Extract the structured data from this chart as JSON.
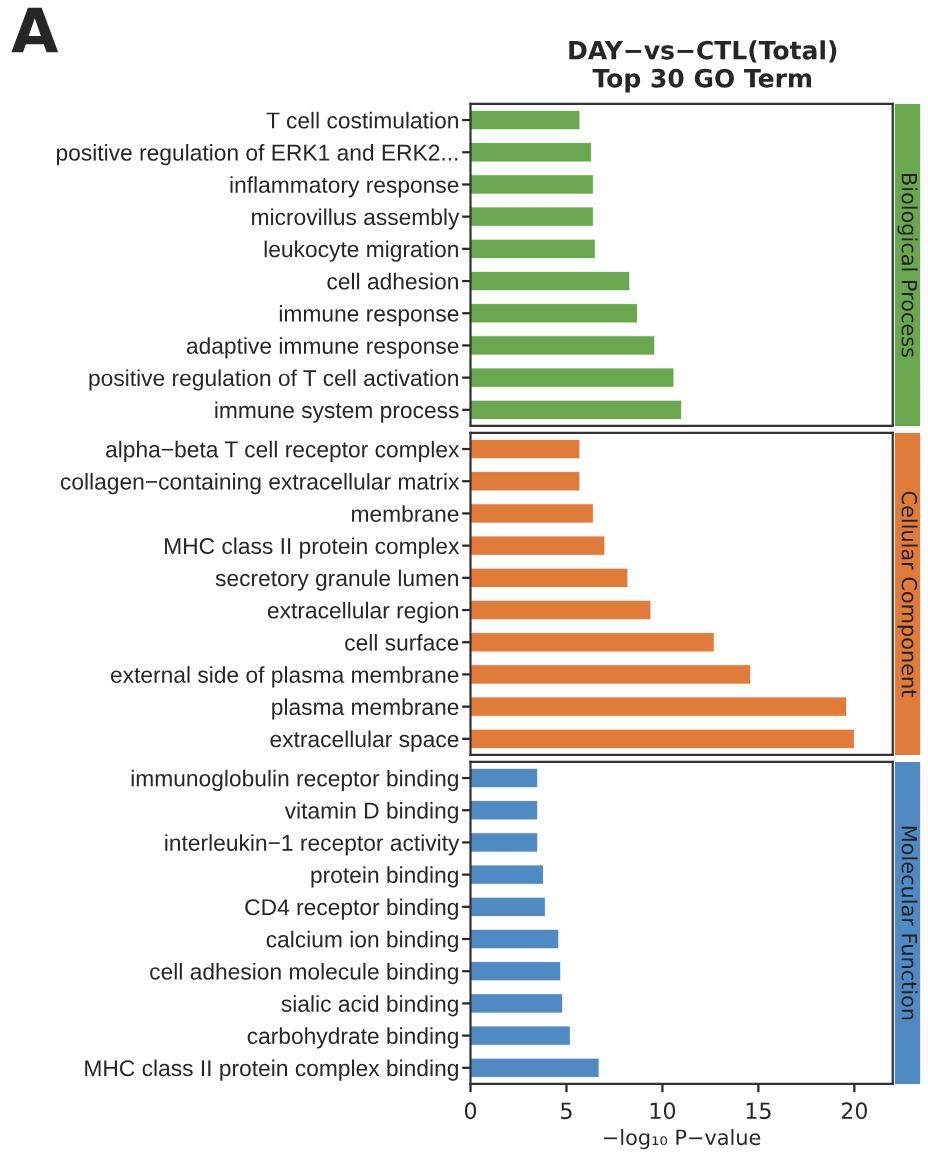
{
  "chart_data": [
    {
      "type": "bar",
      "orientation": "horizontal",
      "title": "DAY−vs−CTL(Total)\nTop 30 GO Term",
      "annotations": [
        "A",
        "Biological Process"
      ],
      "color": "#6aa84f",
      "tick_labels": "y",
      "xlim": [
        0,
        22
      ],
      "categories": [
        "T cell costimulation",
        "positive regulation of ERK1 and ERK2...",
        "inflammatory response",
        "microvillus assembly",
        "leukocyte migration",
        "cell adhesion",
        "immune response",
        "adaptive immune response",
        "positive regulation of T cell activation",
        "immune system process"
      ],
      "values": [
        5.7,
        6.3,
        6.4,
        6.4,
        6.5,
        8.3,
        8.7,
        9.6,
        10.6,
        11.0
      ]
    },
    {
      "type": "bar",
      "orientation": "horizontal",
      "annotations": [
        "Cellular Component"
      ],
      "color": "#e07b39",
      "tick_labels": "y",
      "xlim": [
        0,
        22
      ],
      "categories": [
        "alpha−beta T cell receptor complex",
        "collagen−containing extracellular matrix",
        "membrane",
        "MHC class II protein complex",
        "secretory granule lumen",
        "extracellular region",
        "cell surface",
        "external side of plasma membrane",
        "plasma membrane",
        "extracellular space"
      ],
      "values": [
        5.7,
        5.7,
        6.4,
        7.0,
        8.2,
        9.4,
        12.7,
        14.6,
        19.6,
        20.0
      ]
    },
    {
      "type": "bar",
      "orientation": "horizontal",
      "annotations": [
        "Molecular Function"
      ],
      "color": "#4f8bc2",
      "xlabel": "−log₁₀ P−value",
      "xlim": [
        0,
        22
      ],
      "xticks": [
        0,
        5,
        10,
        15,
        20
      ],
      "categories": [
        "immunoglobulin receptor binding",
        "vitamin D binding",
        "interleukin−1 receptor activity",
        "protein binding",
        "CD4 receptor binding",
        "calcium ion binding",
        "cell adhesion molecule binding",
        "sialic acid binding",
        "carbohydrate binding",
        "MHC class II protein complex binding"
      ],
      "values": [
        3.5,
        3.5,
        3.5,
        3.8,
        3.9,
        4.6,
        4.7,
        4.8,
        5.2,
        6.7
      ]
    }
  ]
}
